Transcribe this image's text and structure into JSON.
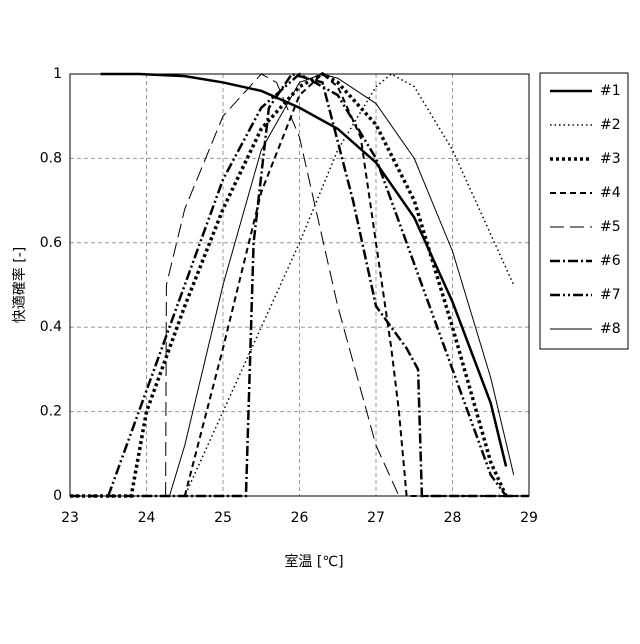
{
  "chart_data": {
    "type": "line",
    "xlabel": "室温 [℃]",
    "ylabel": "快適確率 [-]",
    "xlim": [
      23,
      29
    ],
    "xticks": [
      23,
      24,
      25,
      26,
      27,
      28,
      29
    ],
    "ylim": [
      0,
      1
    ],
    "yticks": [
      0,
      0.2,
      0.4,
      0.6,
      0.8,
      1
    ],
    "grid": true,
    "legend": "outside-right",
    "series": [
      {
        "name": "#1",
        "color": "#000000",
        "width": 2.5,
        "dash": "none",
        "x": [
          23.4,
          23.9,
          24.5,
          25,
          25.5,
          26,
          26.5,
          27,
          27.5,
          28,
          28.5,
          28.7
        ],
        "values": [
          1.0,
          1.0,
          0.995,
          0.98,
          0.96,
          0.92,
          0.87,
          0.79,
          0.66,
          0.46,
          0.22,
          0.07
        ]
      },
      {
        "name": "#2",
        "color": "#000000",
        "width": 1.5,
        "dash": "1.5 3",
        "x": [
          23,
          24.5,
          25,
          25.5,
          26,
          26.5,
          27,
          27.2,
          27.5,
          28,
          28.5,
          28.8
        ],
        "values": [
          0,
          0,
          0.2,
          0.4,
          0.6,
          0.82,
          0.97,
          1.0,
          0.97,
          0.82,
          0.62,
          0.5
        ]
      },
      {
        "name": "#3",
        "color": "#000000",
        "width": 3.5,
        "dash": "3 3",
        "x": [
          23,
          23.8,
          24,
          24.5,
          25,
          25.5,
          26,
          26.3,
          26.5,
          27,
          27.5,
          28,
          28.5,
          28.7
        ],
        "values": [
          0,
          0,
          0.2,
          0.45,
          0.68,
          0.87,
          0.97,
          1.0,
          0.98,
          0.88,
          0.7,
          0.4,
          0.08,
          0
        ]
      },
      {
        "name": "#4",
        "color": "#000000",
        "width": 2,
        "dash": "6 4",
        "x": [
          24.5,
          25,
          25.5,
          26,
          26.3,
          26.5,
          26.8,
          27,
          27.2,
          27.3,
          27.4,
          29
        ],
        "values": [
          0,
          0.35,
          0.72,
          0.95,
          1.0,
          0.97,
          0.85,
          0.6,
          0.35,
          0.2,
          0,
          0
        ]
      },
      {
        "name": "#5",
        "color": "#000000",
        "width": 1,
        "dash": "14 6",
        "x": [
          24.25,
          24.26,
          24.5,
          25,
          25.5,
          25.7,
          26,
          26.5,
          27,
          27.3
        ],
        "values": [
          0,
          0.5,
          0.68,
          0.9,
          1.0,
          0.98,
          0.85,
          0.45,
          0.12,
          0
        ]
      },
      {
        "name": "#6",
        "color": "#000000",
        "width": 2.5,
        "dash": "10 3 2 3",
        "x": [
          23,
          25.3,
          25.4,
          25.6,
          25.9,
          26.3,
          26.7,
          27,
          27.4,
          27.55,
          27.6,
          29
        ],
        "values": [
          0,
          0,
          0.6,
          0.92,
          1.0,
          0.98,
          0.7,
          0.45,
          0.35,
          0.3,
          0,
          0
        ]
      },
      {
        "name": "#7",
        "color": "#000000",
        "width": 2.5,
        "dash": "10 3 2 3 2 3",
        "x": [
          23.5,
          24,
          24.5,
          25,
          25.5,
          26,
          26.5,
          27,
          27.5,
          28,
          28.5,
          28.7
        ],
        "values": [
          0,
          0.25,
          0.5,
          0.75,
          0.92,
          1.0,
          0.95,
          0.8,
          0.55,
          0.3,
          0.05,
          0
        ]
      },
      {
        "name": "#8",
        "color": "#000000",
        "width": 1,
        "dash": "none",
        "x": [
          24.3,
          24.5,
          25,
          25.5,
          26,
          26.3,
          26.5,
          27,
          27.5,
          28,
          28.5,
          28.8
        ],
        "values": [
          0,
          0.12,
          0.5,
          0.82,
          0.98,
          1.0,
          0.99,
          0.93,
          0.8,
          0.58,
          0.28,
          0.05
        ]
      }
    ]
  }
}
